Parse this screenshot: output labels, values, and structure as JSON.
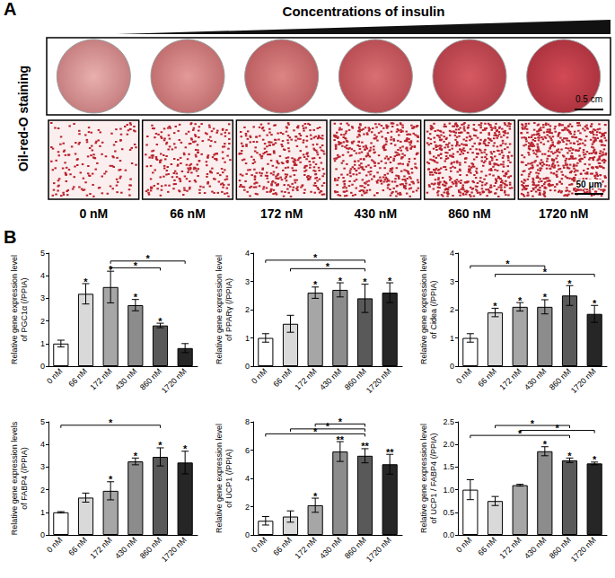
{
  "panel_a": {
    "label": "A",
    "title": "Concentrations of insulin",
    "row_label": "Oil-red-O staining",
    "scale_bars": {
      "dish": "0.5 cm",
      "micrograph": "50 μm"
    },
    "concentrations": [
      "0 nM",
      "66 nM",
      "172 nM",
      "430 nM",
      "860 nM",
      "1720 nM"
    ]
  },
  "panel_b_label": "B",
  "chart_data": [
    {
      "type": "bar",
      "ylabel": "Relative gene expression level\nof PGC1α (/PPIA)",
      "categories": [
        "0 nM",
        "66 nM",
        "172 nM",
        "430 nM",
        "860 nM",
        "1720 nM"
      ],
      "values": [
        1.0,
        3.2,
        3.5,
        2.7,
        1.8,
        0.8
      ],
      "errors": [
        0.15,
        0.45,
        0.7,
        0.25,
        0.1,
        0.2
      ],
      "colors": [
        "#ffffff",
        "#d9d9d9",
        "#a6a6a6",
        "#8c8c8c",
        "#595959",
        "#262626"
      ],
      "ylim": [
        0,
        5
      ],
      "yticks": [
        0,
        1,
        2,
        3,
        4,
        5
      ],
      "grid": false,
      "significance": [
        null,
        "*",
        "*",
        "*",
        "*",
        null
      ],
      "comparisons": [
        {
          "from": "172 nM",
          "to": "1720 nM",
          "y": 4.65,
          "label": "*"
        },
        {
          "from": "172 nM",
          "to": "860 nM",
          "y": 4.35,
          "label": "*"
        }
      ]
    },
    {
      "type": "bar",
      "ylabel": "Relative gene expression level\nof PPARγ (/PPIA)",
      "categories": [
        "0 nM",
        "66 nM",
        "172 nM",
        "430 nM",
        "860 nM",
        "1720 nM"
      ],
      "values": [
        1.0,
        1.5,
        2.6,
        2.7,
        2.4,
        2.6
      ],
      "errors": [
        0.15,
        0.3,
        0.2,
        0.25,
        0.5,
        0.35
      ],
      "colors": [
        "#ffffff",
        "#d9d9d9",
        "#a6a6a6",
        "#8c8c8c",
        "#595959",
        "#262626"
      ],
      "ylim": [
        0,
        4
      ],
      "yticks": [
        0,
        1,
        2,
        3,
        4
      ],
      "grid": false,
      "significance": [
        null,
        null,
        "*",
        "*",
        "*",
        "*"
      ],
      "comparisons": [
        {
          "from": "0 nM",
          "to": "860 nM",
          "y": 3.75,
          "label": "*"
        },
        {
          "from": "66 nM",
          "to": "860 nM",
          "y": 3.45,
          "label": "*"
        }
      ]
    },
    {
      "type": "bar",
      "ylabel": "Relative gene expression level\nof Cidea (/PPIA)",
      "categories": [
        "0 nM",
        "66 nM",
        "172 nM",
        "430 nM",
        "860 nM",
        "1720 nM"
      ],
      "values": [
        1.0,
        1.9,
        2.1,
        2.1,
        2.5,
        1.85
      ],
      "errors": [
        0.15,
        0.15,
        0.15,
        0.25,
        0.35,
        0.3
      ],
      "colors": [
        "#ffffff",
        "#d9d9d9",
        "#a6a6a6",
        "#8c8c8c",
        "#595959",
        "#262626"
      ],
      "ylim": [
        0,
        4
      ],
      "yticks": [
        0,
        1,
        2,
        3,
        4
      ],
      "grid": false,
      "significance": [
        null,
        "*",
        "*",
        "*",
        "*",
        "*"
      ],
      "comparisons": [
        {
          "from": "0 nM",
          "to": "430 nM",
          "y": 3.55,
          "label": "*"
        },
        {
          "from": "66 nM",
          "to": "1720 nM",
          "y": 3.25,
          "label": "*"
        }
      ]
    },
    {
      "type": "bar",
      "ylabel": "Relative gene expression levels\nof FABP4 (/PPIA)",
      "categories": [
        "0 nM",
        "66 nM",
        "172 nM",
        "430 nM",
        "860 nM",
        "1720 nM"
      ],
      "values": [
        1.0,
        1.65,
        1.95,
        3.25,
        3.45,
        3.2
      ],
      "errors": [
        0.03,
        0.2,
        0.4,
        0.15,
        0.4,
        0.5
      ],
      "colors": [
        "#ffffff",
        "#d9d9d9",
        "#a6a6a6",
        "#8c8c8c",
        "#595959",
        "#262626"
      ],
      "ylim": [
        0,
        5
      ],
      "yticks": [
        0,
        1,
        2,
        3,
        4,
        5
      ],
      "grid": false,
      "significance": [
        null,
        null,
        "*",
        "*",
        "*",
        "*"
      ],
      "comparisons": [
        {
          "from": "0 nM",
          "to": "860 nM",
          "y": 4.85,
          "label": "*"
        }
      ]
    },
    {
      "type": "bar",
      "ylabel": "Relative gene expression level\nof UCP1 (/PPIA)",
      "categories": [
        "0 nM",
        "66 nM",
        "172 nM",
        "430 nM",
        "860 nM",
        "1720 nM"
      ],
      "values": [
        1.0,
        1.3,
        2.1,
        5.9,
        5.6,
        5.0
      ],
      "errors": [
        0.3,
        0.4,
        0.5,
        0.7,
        0.5,
        0.7
      ],
      "colors": [
        "#ffffff",
        "#d9d9d9",
        "#a6a6a6",
        "#8c8c8c",
        "#595959",
        "#262626"
      ],
      "ylim": [
        0,
        8
      ],
      "yticks": [
        0,
        2,
        4,
        6,
        8
      ],
      "grid": false,
      "significance": [
        null,
        null,
        "*",
        "**",
        "**",
        "**"
      ],
      "comparisons": [
        {
          "from": "172 nM",
          "to": "860 nM",
          "y": 7.85,
          "label": "*"
        },
        {
          "from": "66 nM",
          "to": "860 nM",
          "y": 7.5,
          "label": "*"
        },
        {
          "from": "0 nM",
          "to": "860 nM",
          "y": 7.15,
          "label": "*"
        }
      ]
    },
    {
      "type": "bar",
      "ylabel": "Relative gene expression level\nof UCP1 / FABP4 (/PPIA)",
      "categories": [
        "0 nM",
        "66 nM",
        "172 nM",
        "430 nM",
        "860 nM",
        "1720 nM"
      ],
      "values": [
        1.0,
        0.75,
        1.1,
        1.85,
        1.65,
        1.58
      ],
      "errors": [
        0.22,
        0.1,
        0.02,
        0.1,
        0.05,
        0.03
      ],
      "colors": [
        "#ffffff",
        "#d9d9d9",
        "#a6a6a6",
        "#8c8c8c",
        "#595959",
        "#262626"
      ],
      "ylim": [
        0,
        2.5
      ],
      "yticks": [
        {
          "value": 0,
          "label": "0.0"
        },
        {
          "value": 0.5,
          "label": "0.5"
        },
        {
          "value": 1,
          "label": "1.0"
        },
        {
          "value": 1.5,
          "label": "1.5"
        },
        {
          "value": 2,
          "label": "2.0"
        },
        {
          "value": 2.5,
          "label": "2.5"
        }
      ],
      "grid": false,
      "significance": [
        null,
        null,
        null,
        "*",
        "*",
        "*"
      ],
      "comparisons": [
        {
          "from": "66 nM",
          "to": "860 nM",
          "y": 2.42,
          "label": "*"
        },
        {
          "from": "172 nM",
          "to": "1720 nM",
          "y": 2.31,
          "label": "*"
        },
        {
          "from": "0 nM",
          "to": "860 nM",
          "y": 2.2,
          "label": "*"
        }
      ]
    }
  ]
}
